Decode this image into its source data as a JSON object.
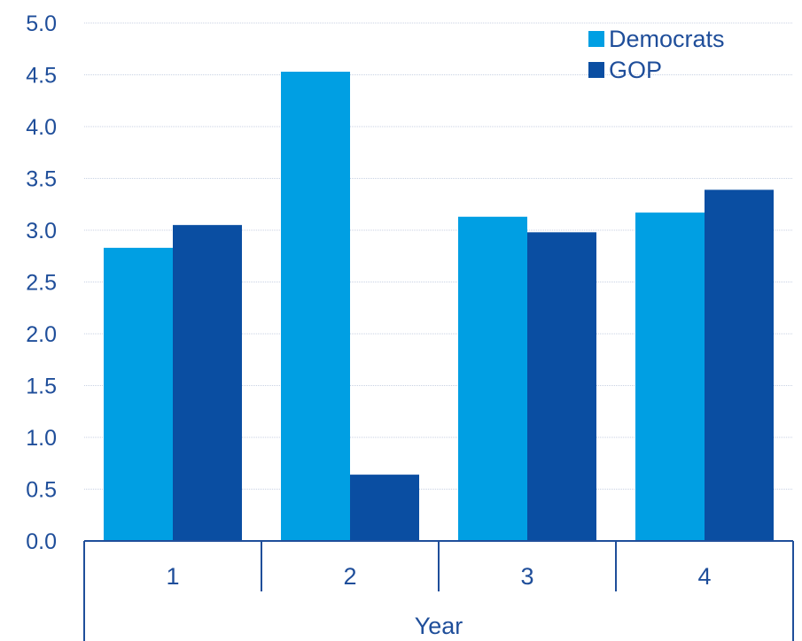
{
  "colors": {
    "democrats": "#009fe3",
    "gop": "#0a4ea2",
    "axis": "#1f4e9a",
    "grid": "#c8d2e3"
  },
  "chart_data": {
    "type": "bar",
    "categories": [
      "1",
      "2",
      "3",
      "4"
    ],
    "series": [
      {
        "name": "Democrats",
        "values": [
          2.83,
          4.53,
          3.13,
          3.17
        ]
      },
      {
        "name": "GOP",
        "values": [
          3.05,
          0.64,
          2.98,
          3.39
        ]
      }
    ],
    "xlabel": "Year",
    "ylabel": "",
    "ylim": [
      0,
      5
    ],
    "yticks": [
      "0.0",
      "0.5",
      "1.0",
      "1.5",
      "2.0",
      "2.5",
      "3.0",
      "3.5",
      "4.0",
      "4.5",
      "5.0"
    ],
    "grid": true,
    "legend_position": "top-right"
  }
}
